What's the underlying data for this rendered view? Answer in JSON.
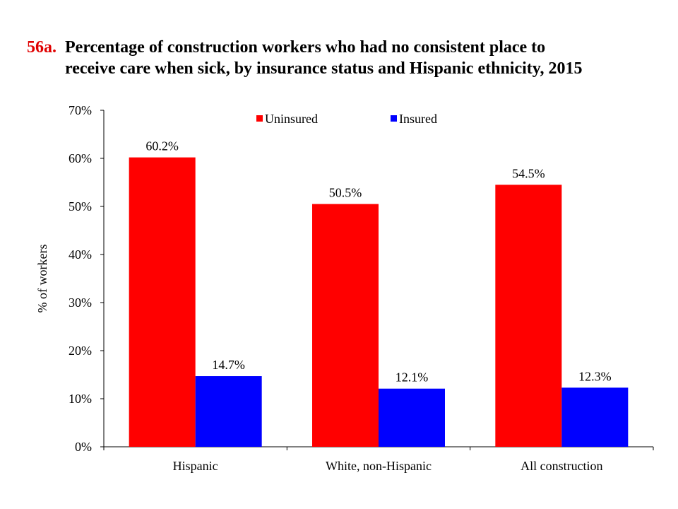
{
  "title": {
    "number": "56a.",
    "line1": "Percentage of construction workers who had no consistent place to",
    "line2": "receive care when sick, by insurance status and Hispanic ethnicity, 2015"
  },
  "colors": {
    "uninsured": "#ff0000",
    "insured": "#0000ff"
  },
  "chart_data": {
    "type": "bar",
    "title": "Percentage of construction workers who had no consistent place to receive care when sick, by insurance status and Hispanic ethnicity, 2015",
    "categories": [
      "Hispanic",
      "White, non-Hispanic",
      "All construction"
    ],
    "series": [
      {
        "name": "Uninsured",
        "values": [
          60.2,
          50.5,
          54.5
        ],
        "labels": [
          "60.2%",
          "50.5%",
          "54.5%"
        ]
      },
      {
        "name": "Insured",
        "values": [
          14.7,
          12.1,
          12.3
        ],
        "labels": [
          "14.7%",
          "12.1%",
          "12.3%"
        ]
      }
    ],
    "ylabel": "% of workers",
    "xlabel": "",
    "ylim": [
      0,
      70
    ],
    "yticks": [
      "0%",
      "10%",
      "20%",
      "30%",
      "40%",
      "50%",
      "60%",
      "70%"
    ],
    "legend": "top",
    "grid": false
  }
}
